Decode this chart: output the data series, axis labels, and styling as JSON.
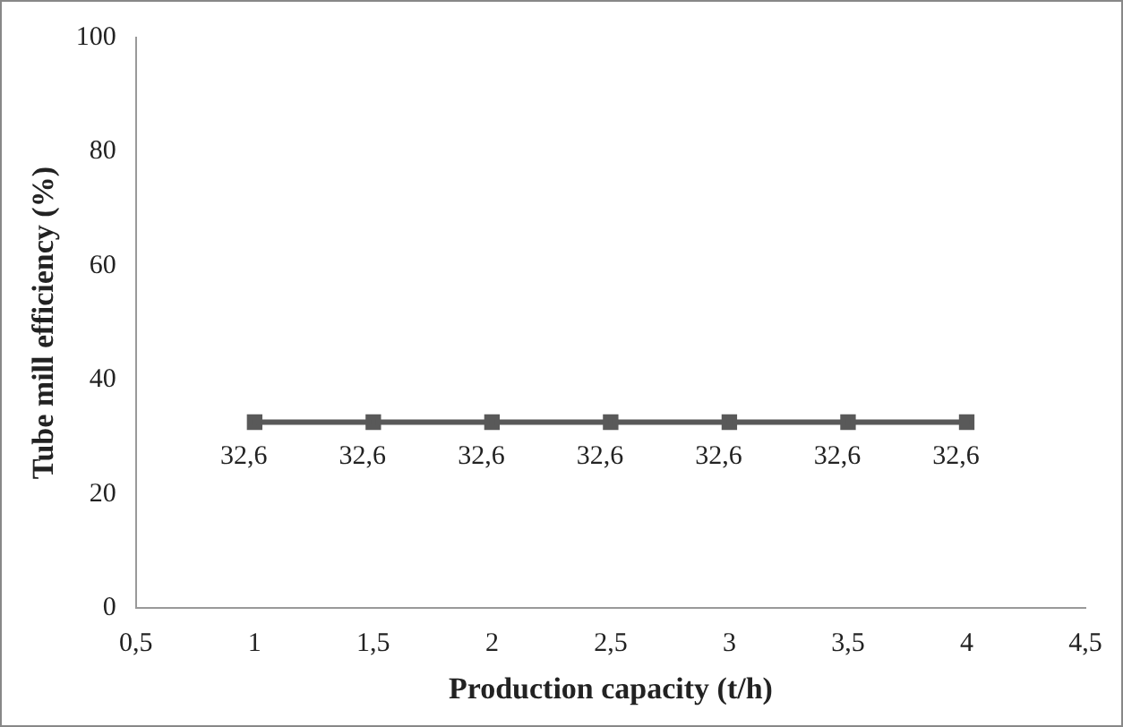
{
  "chart_data": {
    "type": "line",
    "xlabel": "Production capacity (t/h)",
    "ylabel": "Tube mill efficiency (%)",
    "x": [
      1,
      1.5,
      2,
      2.5,
      3,
      3.5,
      4
    ],
    "series": [
      {
        "color": "#595959",
        "values": [
          32.6,
          32.6,
          32.6,
          32.6,
          32.6,
          32.6,
          32.6
        ],
        "value_labels": [
          "32,6",
          "32,6",
          "32,6",
          "32,6",
          "32,6",
          "32,6",
          "32,6"
        ]
      }
    ],
    "xlim": [
      0.5,
      4.5
    ],
    "xticks": [
      {
        "value": 0.5,
        "label": "0,5"
      },
      1,
      {
        "value": 1.5,
        "label": "1,5"
      },
      2,
      {
        "value": 2.5,
        "label": "2,5"
      },
      3,
      {
        "value": 3.5,
        "label": "3,5"
      },
      4,
      {
        "value": 4.5,
        "label": "4,5"
      }
    ],
    "ylim": [
      0,
      100
    ],
    "yticks": [
      0,
      20,
      40,
      60,
      80,
      100
    ],
    "marker": "square",
    "line_style": "solid",
    "legend": false
  }
}
